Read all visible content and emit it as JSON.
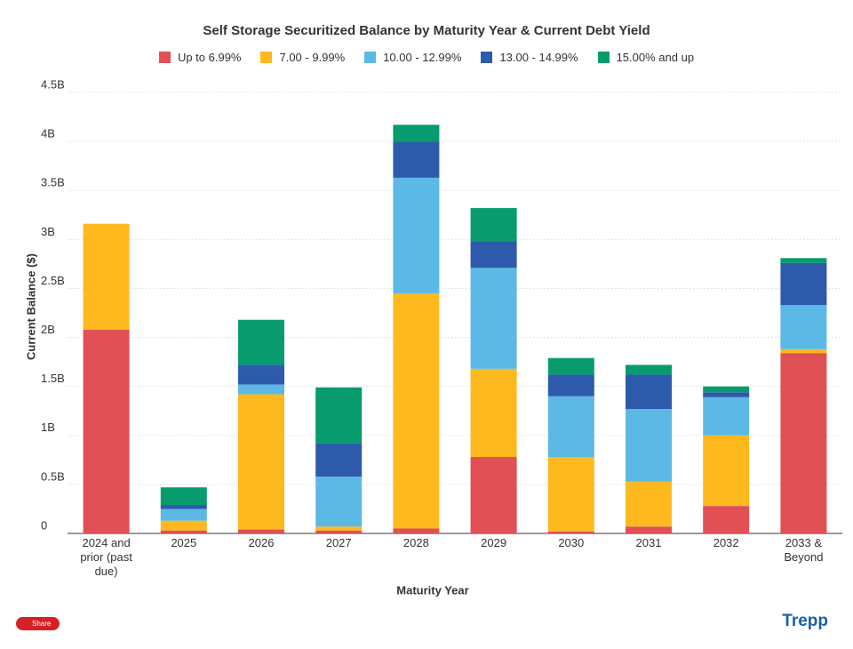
{
  "chart_data": {
    "type": "stacked_bar",
    "title": "Self Storage Securitized Balance by Maturity Year & Current Debt Yield",
    "x_label": "Maturity Year",
    "y_label": "Current Balance ($)",
    "categories": [
      "2024 and prior (past due)",
      "2025",
      "2026",
      "2027",
      "2028",
      "2029",
      "2030",
      "2031",
      "2032",
      "2033 & Beyond"
    ],
    "series": [
      {
        "name": "Up to 6.99%",
        "color": "#e05055",
        "values": [
          2.08,
          0.03,
          0.04,
          0.03,
          0.05,
          0.78,
          0.02,
          0.07,
          0.28,
          1.84
        ]
      },
      {
        "name": "7.00 - 9.99%",
        "color": "#fdb91e",
        "values": [
          1.08,
          0.1,
          1.38,
          0.04,
          2.4,
          0.9,
          0.76,
          0.46,
          0.72,
          0.04
        ]
      },
      {
        "name": "10.00 - 12.99%",
        "color": "#5cb8e4",
        "values": [
          0,
          0.12,
          0.1,
          0.51,
          1.18,
          1.03,
          0.62,
          0.74,
          0.39,
          0.45
        ]
      },
      {
        "name": "13.00 - 14.99%",
        "color": "#2d5aab",
        "values": [
          0,
          0.04,
          0.2,
          0.34,
          0.37,
          0.27,
          0.22,
          0.35,
          0.05,
          0.43
        ]
      },
      {
        "name": "15.00% and up",
        "color": "#079b6d",
        "values": [
          0,
          0.18,
          0.46,
          0.57,
          0.17,
          0.34,
          0.17,
          0.1,
          0.06,
          0.05
        ]
      }
    ],
    "ylim": [
      0,
      4.5
    ],
    "yticks": [
      0,
      {
        "value": 0.5,
        "label": "0.5B"
      },
      {
        "value": 1,
        "label": "1B"
      },
      {
        "value": 1.5,
        "label": "1.5B"
      },
      {
        "value": 2,
        "label": "2B"
      },
      {
        "value": 2.5,
        "label": "2.5B"
      },
      {
        "value": 3,
        "label": "3B"
      },
      {
        "value": 3.5,
        "label": "3.5B"
      },
      {
        "value": 4,
        "label": "4B"
      },
      {
        "value": 4.5,
        "label": "4.5B"
      }
    ],
    "grid": true
  },
  "share_button": "Share",
  "logo": "Trepp"
}
